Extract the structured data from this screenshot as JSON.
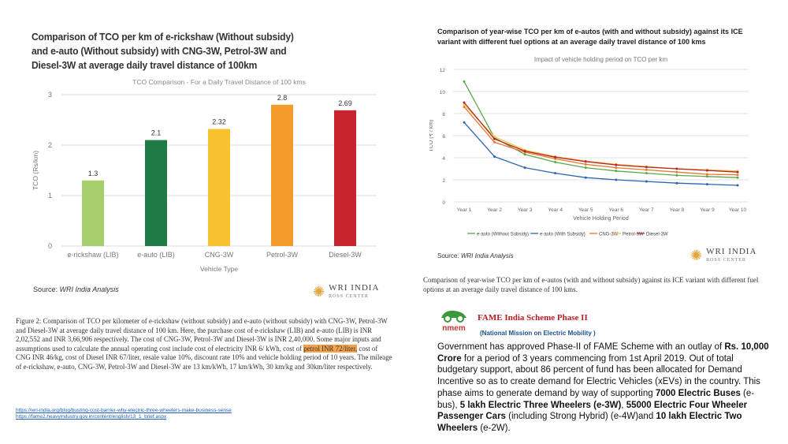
{
  "left": {
    "title": "Comparison of TCO per km of e-rickshaw (Without subsidy) and e-auto (Without subsidy) with CNG-3W, Petrol-3W and Diesel-3W at average daily travel distance of 100km",
    "source_label": "Source:",
    "source_value": "WRI India Analysis",
    "caption_before": "Figure 2: Comparison of TCO per kilometer of e-rickshaw (without subsidy) and e-auto (without subsidy) with CNG-3W, Petrol-3W and Diesel-3W at average daily travel distance of 100 km. Here, the purchase cost of e-rickshaw (LIB) and e-auto (LIB) is INR 2,02,552 and INR 3,66,906 respectively. The cost of CNG-3W, Petrol-3W and Diesel-3W is INR 2,40,000. Some major inputs and assumptions used to calculate the annual operating cost include cost of electricity INR 6/ kWh, cost of ",
    "caption_highlight": "petrol INR 72/liter,",
    "caption_after": " cost of CNG INR 46/kg, cost of Diesel INR 67/liter, resale value 10%, discount rate 10% and vehicle holding period of 10 years. The mileage of e-rickshaw, e-auto, CNG-3W, Petrol-3W and Diesel-3W are 13 km/kWh, 17 km/kWh, 30 km/kg and 30km/liter respectively.",
    "link1": "https://wri-india.org/blog/busting-cost-barrier-why-electric-three-wheelers-make-business-sense",
    "link2": "https://fame2.heavyindustry.gov.in/content/english/13_1_brief.aspx"
  },
  "logo": {
    "name": "WRI INDIA",
    "sub": "ROSS CENTER"
  },
  "right": {
    "title": "Comparison of year-wise TCO per km of e-autos (with and without subsidy) against its ICE variant with different fuel options at an average daily travel distance of 100 kms",
    "source_label": "Source:",
    "source_value": "WRI India Analysis",
    "caption": "Comparison of year-wise TCO per km of e-autos (with and without subsidy) against its ICE variant with different fuel options at an average daily travel distance of 100 kms."
  },
  "fame": {
    "logo_text": "nmem",
    "title": "FAME India Scheme Phase II",
    "subtitle": "(National Mission on Electric Mobility )",
    "body_1": "Government has approved Phase-II of FAME Scheme with an outlay of ",
    "body_2": "Rs. 10,000 Crore",
    "body_3": " for a period of 3 years commencing from 1st April 2019. Out of total budgetary support, about 86 percent of fund has been allocated for Demand Incentive so as to create demand for Electric Vehicles (xEVs) in the country. This phase aims to generate demand by way of supporting ",
    "body_4": "7000 Electric Buses",
    "body_5": " (e-bus), ",
    "body_6": "5 lakh Electric Three Wheelers (e-3W)",
    "body_7": ", ",
    "body_8": "55000 Electric Four Wheeler Passenger Cars",
    "body_9": " (including Strong Hybrid) (e-4W)and ",
    "body_10": "10 lakh Electric Two Wheelers",
    "body_11": " (e-2W)."
  },
  "chart_data": [
    {
      "type": "bar",
      "title": "TCO Comparison - For a Daily Travel Distance of 100 kms",
      "xlabel": "Vehicle Type",
      "ylabel": "TCO (Rs/km)",
      "ylim": [
        0,
        3
      ],
      "yticks": [
        0,
        1,
        2,
        3
      ],
      "categories": [
        "e-rickshaw (LIB)",
        "e-auto (LIB)",
        "CNG-3W",
        "Petrol-3W",
        "Diesel-3W"
      ],
      "values": [
        1.3,
        2.1,
        2.32,
        2.8,
        2.69
      ],
      "colors": [
        "#a8cf6e",
        "#1f7a45",
        "#f7c22e",
        "#f29a2a",
        "#c8242f"
      ],
      "grid": true
    },
    {
      "type": "line",
      "title": "Impact of vehicle holding period on TCO per km",
      "xlabel": "Vehicle Holding Period",
      "ylabel": "TCO (₹ / km)",
      "ylim": [
        0,
        12
      ],
      "yticks": [
        0,
        2,
        4,
        6,
        8,
        10,
        12
      ],
      "x": [
        "Year 1",
        "Year 2",
        "Year 3",
        "Year 4",
        "Year 5",
        "Year 6",
        "Year 7",
        "Year 8",
        "Year 9",
        "Year 10"
      ],
      "legend_position": "bottom",
      "series": [
        {
          "name": "e-auto (Without Subsidy)",
          "color": "#5aa84a",
          "values": [
            10.9,
            5.8,
            4.3,
            3.6,
            3.1,
            2.8,
            2.6,
            2.4,
            2.3,
            2.2
          ]
        },
        {
          "name": "e-auto (With Subsidy)",
          "color": "#2a66b0",
          "values": [
            7.2,
            4.1,
            3.1,
            2.6,
            2.2,
            2.0,
            1.85,
            1.7,
            1.6,
            1.5
          ]
        },
        {
          "name": "CNG-3W",
          "color": "#e57a2e",
          "values": [
            8.6,
            5.4,
            4.5,
            3.9,
            3.4,
            3.1,
            2.9,
            2.7,
            2.5,
            2.45
          ]
        },
        {
          "name": "Petrol-3W",
          "color": "#f2c64a",
          "values": [
            8.8,
            5.9,
            4.7,
            4.1,
            3.7,
            3.4,
            3.2,
            3.0,
            2.9,
            2.8
          ]
        },
        {
          "name": "Diesel-3W",
          "color": "#b8232c",
          "values": [
            9.0,
            5.7,
            4.6,
            4.05,
            3.65,
            3.35,
            3.15,
            3.0,
            2.85,
            2.7
          ]
        }
      ],
      "grid": true
    }
  ]
}
